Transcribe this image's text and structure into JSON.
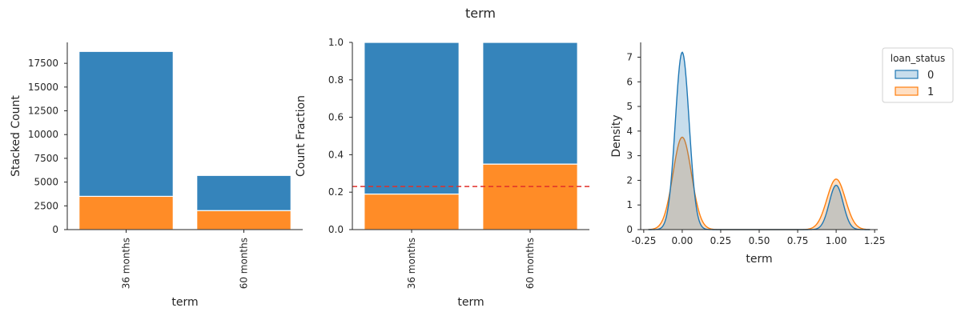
{
  "figure": {
    "suptitle": "term",
    "colors": {
      "status0": "#3584bb",
      "status1": "#ff8c27",
      "kde0": "#1f77b4",
      "kde1": "#ff7f0e",
      "refline": "#e0302a",
      "axis": "#262626"
    }
  },
  "chart_data": [
    {
      "type": "bar",
      "stacked": true,
      "categories": [
        "36 months",
        "60 months"
      ],
      "series": [
        {
          "status": "1",
          "values": [
            3500,
            2000
          ]
        },
        {
          "status": "0",
          "values": [
            15250,
            3700
          ]
        }
      ],
      "totals": [
        18750,
        5700
      ],
      "xlabel": "term",
      "ylabel": "Stacked Count",
      "ylim": [
        0,
        19700
      ],
      "yticks": [
        0,
        2500,
        5000,
        7500,
        10000,
        12500,
        15000,
        17500
      ],
      "grid": false
    },
    {
      "type": "bar",
      "stacked": true,
      "categories": [
        "36 months",
        "60 months"
      ],
      "series": [
        {
          "status": "1",
          "values": [
            0.19,
            0.35
          ]
        },
        {
          "status": "0",
          "values": [
            0.81,
            0.65
          ]
        }
      ],
      "reference_line": 0.23,
      "xlabel": "term",
      "ylabel": "Count Fraction",
      "ylim": [
        0,
        1.0
      ],
      "yticks": [
        0.0,
        0.2,
        0.4,
        0.6,
        0.8,
        1.0
      ],
      "grid": false
    },
    {
      "type": "area",
      "subtype": "kde",
      "series": [
        {
          "name": "0",
          "peaks": [
            {
              "x": 0.0,
              "y": 7.2
            },
            {
              "x": 1.0,
              "y": 1.8
            }
          ],
          "bandwidth": 0.045
        },
        {
          "name": "1",
          "peaks": [
            {
              "x": 0.0,
              "y": 3.75
            },
            {
              "x": 1.0,
              "y": 2.05
            }
          ],
          "bandwidth": 0.06
        }
      ],
      "xlabel": "term",
      "ylabel": "Density",
      "xlim": [
        -0.27,
        1.27
      ],
      "ylim": [
        0,
        7.6
      ],
      "xticks": [
        -0.25,
        0.0,
        0.25,
        0.5,
        0.75,
        1.0,
        1.25
      ],
      "yticks": [
        0,
        1,
        2,
        3,
        4,
        5,
        6,
        7
      ],
      "legend": {
        "title": "loan_status",
        "entries": [
          "0",
          "1"
        ],
        "placement": "outside-right"
      },
      "grid": false
    }
  ]
}
